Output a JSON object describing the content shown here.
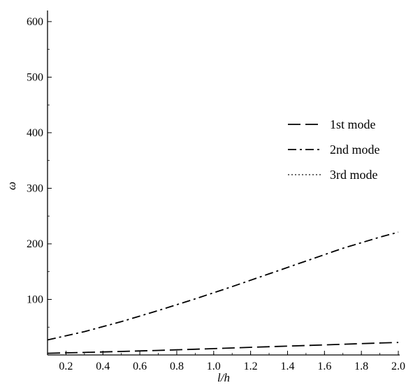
{
  "chart_data": {
    "type": "line",
    "xlabel": "l/h",
    "ylabel": "ω",
    "xlim": [
      0.1,
      2.0
    ],
    "ylim": [
      0,
      620
    ],
    "xticks": [
      "0.2",
      "0.4",
      "0.6",
      "0.8",
      "1.0",
      "1.2",
      "1.4",
      "1.6",
      "1.8",
      "2.0"
    ],
    "yticks": [
      "100",
      "200",
      "300",
      "400",
      "500",
      "600"
    ],
    "grid": false,
    "legend_position": "right",
    "series": [
      {
        "name": "1st mode",
        "style": "dash",
        "color": "#000000",
        "x": [
          0.1,
          0.3,
          0.5,
          0.7,
          0.9,
          1.1,
          1.3,
          1.5,
          1.7,
          1.9,
          2.0
        ],
        "y": [
          3.0,
          4.5,
          6.3,
          8.2,
          10.3,
          12.6,
          14.8,
          17.0,
          19.3,
          21.5,
          22.5
        ]
      },
      {
        "name": "2nd mode",
        "style": "dashdot",
        "color": "#000000",
        "x": [
          0.1,
          0.3,
          0.5,
          0.7,
          0.9,
          1.1,
          1.3,
          1.5,
          1.7,
          1.9,
          2.0
        ],
        "y": [
          27,
          42,
          60,
          80,
          101,
          123,
          146,
          169,
          192,
          212,
          221
        ]
      },
      {
        "name": "3rd mode",
        "style": "dot",
        "color": "#555555",
        "x": [],
        "y": []
      }
    ]
  }
}
